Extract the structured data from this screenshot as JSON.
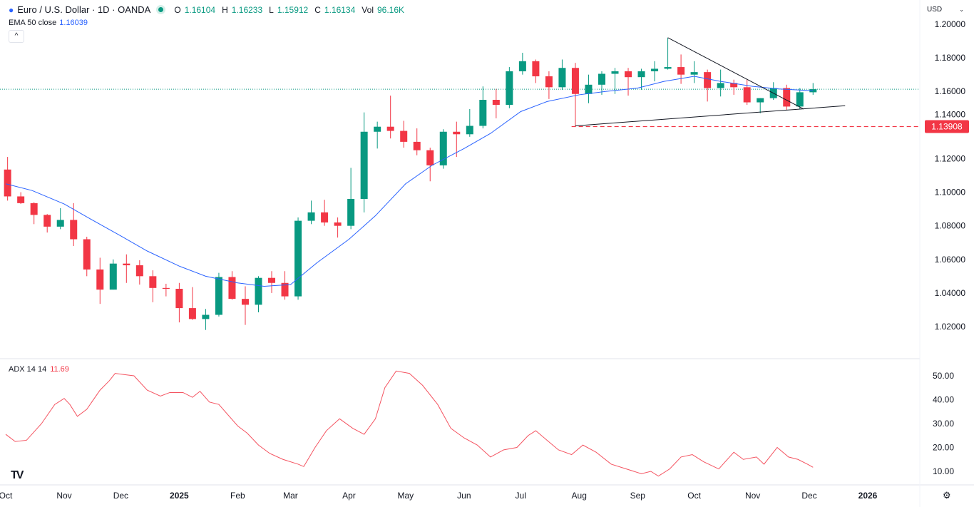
{
  "header": {
    "symbol": "Euro / U.S. Dollar · 1D · OANDA",
    "open_label": "O",
    "open": "1.16104",
    "high_label": "H",
    "high": "1.16233",
    "low_label": "L",
    "low": "1.15912",
    "close_label": "C",
    "close": "1.16134",
    "vol_label": "Vol",
    "vol": "96.16K",
    "ema_label": "EMA 50 close",
    "ema_value": "1.16039",
    "currency": "USD"
  },
  "adx": {
    "label": "ADX 14 14",
    "value": "11.69"
  },
  "colors": {
    "up": "#089981",
    "down": "#f23645",
    "ema": "#2962ff",
    "adx": "#f23645",
    "support": "#f23645",
    "trendline": "#131722"
  },
  "chart_data": {
    "type": "candlestick",
    "price_ticks": [
      "1.20000",
      "1.18000",
      "1.16000",
      "1.14000",
      "1.12000",
      "1.10000",
      "1.08000",
      "1.06000",
      "1.04000",
      "1.02000"
    ],
    "ylim": [
      1.0055,
      1.2072
    ],
    "adx_ticks": [
      "50.00",
      "40.00",
      "30.00",
      "20.00",
      "10.00"
    ],
    "adx_ylim": [
      5,
      55
    ],
    "x_range": [
      "2024-10-01",
      "2026-01-01"
    ],
    "time_ticks": [
      {
        "date": "2024-10-01",
        "label": "Oct",
        "bold": false
      },
      {
        "date": "2024-11-01",
        "label": "Nov",
        "bold": false
      },
      {
        "date": "2024-12-01",
        "label": "Dec",
        "bold": false
      },
      {
        "date": "2025-01-01",
        "label": "2025",
        "bold": true
      },
      {
        "date": "2025-02-01",
        "label": "Feb",
        "bold": false
      },
      {
        "date": "2025-03-01",
        "label": "Mar",
        "bold": false
      },
      {
        "date": "2025-04-01",
        "label": "Apr",
        "bold": false
      },
      {
        "date": "2025-05-01",
        "label": "May",
        "bold": false
      },
      {
        "date": "2025-06-01",
        "label": "Jun",
        "bold": false
      },
      {
        "date": "2025-07-01",
        "label": "Jul",
        "bold": false
      },
      {
        "date": "2025-08-01",
        "label": "Aug",
        "bold": false
      },
      {
        "date": "2025-09-01",
        "label": "Sep",
        "bold": false
      },
      {
        "date": "2025-10-01",
        "label": "Oct",
        "bold": false
      },
      {
        "date": "2025-11-01",
        "label": "Nov",
        "bold": false
      },
      {
        "date": "2025-12-01",
        "label": "Dec",
        "bold": false
      },
      {
        "date": "2026-01-01",
        "label": "2026",
        "bold": true
      }
    ],
    "last_price": 1.16134,
    "support_level": {
      "value": 1.13908,
      "label": "1.13908",
      "from": "2025-07-28"
    },
    "trendlines": [
      {
        "from": [
          "2025-09-17",
          1.192
        ],
        "to": [
          "2025-11-28",
          1.1495
        ]
      },
      {
        "from": [
          "2025-07-30",
          1.1395
        ],
        "to": [
          "2025-12-20",
          1.1515
        ]
      }
    ],
    "candles": [
      [
        "2024-10-02",
        1.1135,
        1.121,
        1.095,
        1.0975
      ],
      [
        "2024-10-09",
        1.0975,
        1.1,
        1.093,
        1.0935
      ],
      [
        "2024-10-16",
        1.0935,
        1.094,
        1.081,
        1.0865
      ],
      [
        "2024-10-23",
        1.0865,
        1.087,
        1.076,
        1.0795
      ],
      [
        "2024-10-30",
        1.0795,
        1.0905,
        1.078,
        1.0835
      ],
      [
        "2024-11-06",
        1.0835,
        1.0935,
        1.068,
        1.072
      ],
      [
        "2024-11-13",
        1.072,
        1.0735,
        1.05,
        1.054
      ],
      [
        "2024-11-20",
        1.054,
        1.061,
        1.0335,
        1.042
      ],
      [
        "2024-11-27",
        1.042,
        1.06,
        1.042,
        1.0575
      ],
      [
        "2024-12-04",
        1.0575,
        1.063,
        1.046,
        1.0565
      ],
      [
        "2024-12-11",
        1.0565,
        1.0595,
        1.045,
        1.05
      ],
      [
        "2024-12-18",
        1.05,
        1.0535,
        1.0345,
        1.043
      ],
      [
        "2024-12-25",
        1.043,
        1.0455,
        1.038,
        1.0425
      ],
      [
        "2025-01-01",
        1.0425,
        1.046,
        1.0225,
        1.031
      ],
      [
        "2025-01-08",
        1.031,
        1.0435,
        1.024,
        1.0245
      ],
      [
        "2025-01-15",
        1.0245,
        1.0305,
        1.018,
        1.027
      ],
      [
        "2025-01-22",
        1.027,
        1.052,
        1.026,
        1.0495
      ],
      [
        "2025-01-29",
        1.0495,
        1.053,
        1.036,
        1.0365
      ],
      [
        "2025-02-05",
        1.0365,
        1.044,
        1.021,
        1.033
      ],
      [
        "2025-02-12",
        1.033,
        1.05,
        1.0285,
        1.049
      ],
      [
        "2025-02-19",
        1.049,
        1.053,
        1.04,
        1.046
      ],
      [
        "2025-02-26",
        1.046,
        1.053,
        1.036,
        1.038
      ],
      [
        "2025-03-05",
        1.038,
        1.085,
        1.036,
        1.083
      ],
      [
        "2025-03-12",
        1.083,
        1.095,
        1.081,
        1.088
      ],
      [
        "2025-03-19",
        1.088,
        1.0955,
        1.08,
        1.082
      ],
      [
        "2025-03-26",
        1.082,
        1.085,
        1.073,
        1.08
      ],
      [
        "2025-04-02",
        1.08,
        1.1145,
        1.078,
        1.096
      ],
      [
        "2025-04-09",
        1.096,
        1.1475,
        1.088,
        1.136
      ],
      [
        "2025-04-16",
        1.136,
        1.142,
        1.126,
        1.139
      ],
      [
        "2025-04-23",
        1.139,
        1.1575,
        1.132,
        1.1365
      ],
      [
        "2025-04-30",
        1.1365,
        1.1425,
        1.1265,
        1.13
      ],
      [
        "2025-05-07",
        1.13,
        1.138,
        1.122,
        1.125
      ],
      [
        "2025-05-14",
        1.125,
        1.1265,
        1.1065,
        1.116
      ],
      [
        "2025-05-21",
        1.116,
        1.1375,
        1.114,
        1.136
      ],
      [
        "2025-05-28",
        1.136,
        1.142,
        1.121,
        1.1345
      ],
      [
        "2025-06-04",
        1.1345,
        1.1495,
        1.133,
        1.1395
      ],
      [
        "2025-06-11",
        1.1395,
        1.163,
        1.138,
        1.155
      ],
      [
        "2025-06-18",
        1.155,
        1.1615,
        1.144,
        1.152
      ],
      [
        "2025-06-25",
        1.152,
        1.1745,
        1.15,
        1.172
      ],
      [
        "2025-07-02",
        1.172,
        1.183,
        1.17,
        1.178
      ],
      [
        "2025-07-09",
        1.178,
        1.179,
        1.165,
        1.169
      ],
      [
        "2025-07-16",
        1.169,
        1.172,
        1.1555,
        1.1625
      ],
      [
        "2025-07-23",
        1.1625,
        1.179,
        1.161,
        1.174
      ],
      [
        "2025-07-30",
        1.174,
        1.177,
        1.139,
        1.1585
      ],
      [
        "2025-08-06",
        1.1585,
        1.17,
        1.153,
        1.164
      ],
      [
        "2025-08-13",
        1.164,
        1.172,
        1.158,
        1.1705
      ],
      [
        "2025-08-20",
        1.1705,
        1.174,
        1.1585,
        1.172
      ],
      [
        "2025-08-27",
        1.172,
        1.174,
        1.1575,
        1.1685
      ],
      [
        "2025-09-03",
        1.1685,
        1.1735,
        1.161,
        1.172
      ],
      [
        "2025-09-10",
        1.172,
        1.178,
        1.166,
        1.1735
      ],
      [
        "2025-09-17",
        1.1735,
        1.192,
        1.173,
        1.1745
      ],
      [
        "2025-09-24",
        1.1745,
        1.182,
        1.1645,
        1.17
      ],
      [
        "2025-10-01",
        1.17,
        1.178,
        1.165,
        1.1715
      ],
      [
        "2025-10-08",
        1.1715,
        1.173,
        1.154,
        1.162
      ],
      [
        "2025-10-15",
        1.162,
        1.173,
        1.157,
        1.165
      ],
      [
        "2025-10-22",
        1.165,
        1.167,
        1.158,
        1.1625
      ],
      [
        "2025-10-29",
        1.1625,
        1.167,
        1.152,
        1.1535
      ],
      [
        "2025-11-05",
        1.1535,
        1.156,
        1.147,
        1.156
      ],
      [
        "2025-11-12",
        1.156,
        1.1655,
        1.155,
        1.162
      ],
      [
        "2025-11-19",
        1.162,
        1.164,
        1.149,
        1.151
      ],
      [
        "2025-11-26",
        1.151,
        1.162,
        1.1495,
        1.1595
      ],
      [
        "2025-12-03",
        1.1595,
        1.165,
        1.158,
        1.16134
      ]
    ],
    "ema50": [
      [
        "2024-10-01",
        1.105
      ],
      [
        "2024-10-15",
        1.101
      ],
      [
        "2024-11-01",
        1.093
      ],
      [
        "2024-11-15",
        1.084
      ],
      [
        "2024-12-01",
        1.074
      ],
      [
        "2024-12-15",
        1.065
      ],
      [
        "2025-01-01",
        1.056
      ],
      [
        "2025-01-15",
        1.05
      ],
      [
        "2025-02-01",
        1.046
      ],
      [
        "2025-02-15",
        1.044
      ],
      [
        "2025-03-01",
        1.045
      ],
      [
        "2025-03-15",
        1.058
      ],
      [
        "2025-04-01",
        1.072
      ],
      [
        "2025-04-15",
        1.086
      ],
      [
        "2025-05-01",
        1.105
      ],
      [
        "2025-05-15",
        1.116
      ],
      [
        "2025-06-01",
        1.126
      ],
      [
        "2025-06-15",
        1.135
      ],
      [
        "2025-07-01",
        1.148
      ],
      [
        "2025-07-15",
        1.154
      ],
      [
        "2025-08-01",
        1.158
      ],
      [
        "2025-08-15",
        1.16
      ],
      [
        "2025-09-01",
        1.162
      ],
      [
        "2025-09-15",
        1.166
      ],
      [
        "2025-10-01",
        1.169
      ],
      [
        "2025-10-15",
        1.166
      ],
      [
        "2025-11-01",
        1.163
      ],
      [
        "2025-11-15",
        1.1615
      ],
      [
        "2025-12-03",
        1.16039
      ]
    ],
    "adx_series": [
      [
        "2024-10-01",
        25.5
      ],
      [
        "2024-10-06",
        22.5
      ],
      [
        "2024-10-12",
        23
      ],
      [
        "2024-10-20",
        30
      ],
      [
        "2024-10-27",
        38
      ],
      [
        "2024-11-01",
        40.5
      ],
      [
        "2024-11-04",
        38
      ],
      [
        "2024-11-08",
        33
      ],
      [
        "2024-11-13",
        36
      ],
      [
        "2024-11-20",
        44
      ],
      [
        "2024-11-25",
        48
      ],
      [
        "2024-11-28",
        51
      ],
      [
        "2024-12-03",
        50.5
      ],
      [
        "2024-12-08",
        50
      ],
      [
        "2024-12-15",
        44
      ],
      [
        "2024-12-22",
        41.5
      ],
      [
        "2024-12-27",
        43
      ],
      [
        "2025-01-03",
        43
      ],
      [
        "2025-01-08",
        41
      ],
      [
        "2025-01-12",
        43.5
      ],
      [
        "2025-01-17",
        39
      ],
      [
        "2025-01-22",
        38
      ],
      [
        "2025-02-01",
        29
      ],
      [
        "2025-02-06",
        26
      ],
      [
        "2025-02-12",
        21
      ],
      [
        "2025-02-18",
        17.5
      ],
      [
        "2025-02-25",
        15
      ],
      [
        "2025-03-05",
        13
      ],
      [
        "2025-03-08",
        12
      ],
      [
        "2025-03-14",
        20
      ],
      [
        "2025-03-20",
        27
      ],
      [
        "2025-03-27",
        32
      ],
      [
        "2025-04-03",
        28
      ],
      [
        "2025-04-09",
        25.5
      ],
      [
        "2025-04-15",
        32
      ],
      [
        "2025-04-20",
        45
      ],
      [
        "2025-04-26",
        52
      ],
      [
        "2025-05-03",
        51
      ],
      [
        "2025-05-10",
        46
      ],
      [
        "2025-05-18",
        38
      ],
      [
        "2025-05-25",
        28
      ],
      [
        "2025-06-01",
        24
      ],
      [
        "2025-06-08",
        21
      ],
      [
        "2025-06-15",
        16
      ],
      [
        "2025-06-22",
        19
      ],
      [
        "2025-06-29",
        20
      ],
      [
        "2025-07-05",
        25
      ],
      [
        "2025-07-09",
        27
      ],
      [
        "2025-07-15",
        23
      ],
      [
        "2025-07-21",
        19
      ],
      [
        "2025-07-28",
        17
      ],
      [
        "2025-08-03",
        21
      ],
      [
        "2025-08-10",
        18
      ],
      [
        "2025-08-18",
        13
      ],
      [
        "2025-08-26",
        11
      ],
      [
        "2025-09-03",
        9
      ],
      [
        "2025-09-08",
        10
      ],
      [
        "2025-09-12",
        8
      ],
      [
        "2025-09-18",
        11
      ],
      [
        "2025-09-24",
        16
      ],
      [
        "2025-09-30",
        17
      ],
      [
        "2025-10-06",
        14
      ],
      [
        "2025-10-14",
        11
      ],
      [
        "2025-10-22",
        18
      ],
      [
        "2025-10-27",
        15
      ],
      [
        "2025-11-03",
        16
      ],
      [
        "2025-11-07",
        13
      ],
      [
        "2025-11-14",
        20
      ],
      [
        "2025-11-20",
        16
      ],
      [
        "2025-11-25",
        15
      ],
      [
        "2025-11-30",
        13
      ],
      [
        "2025-12-03",
        11.69
      ]
    ]
  }
}
